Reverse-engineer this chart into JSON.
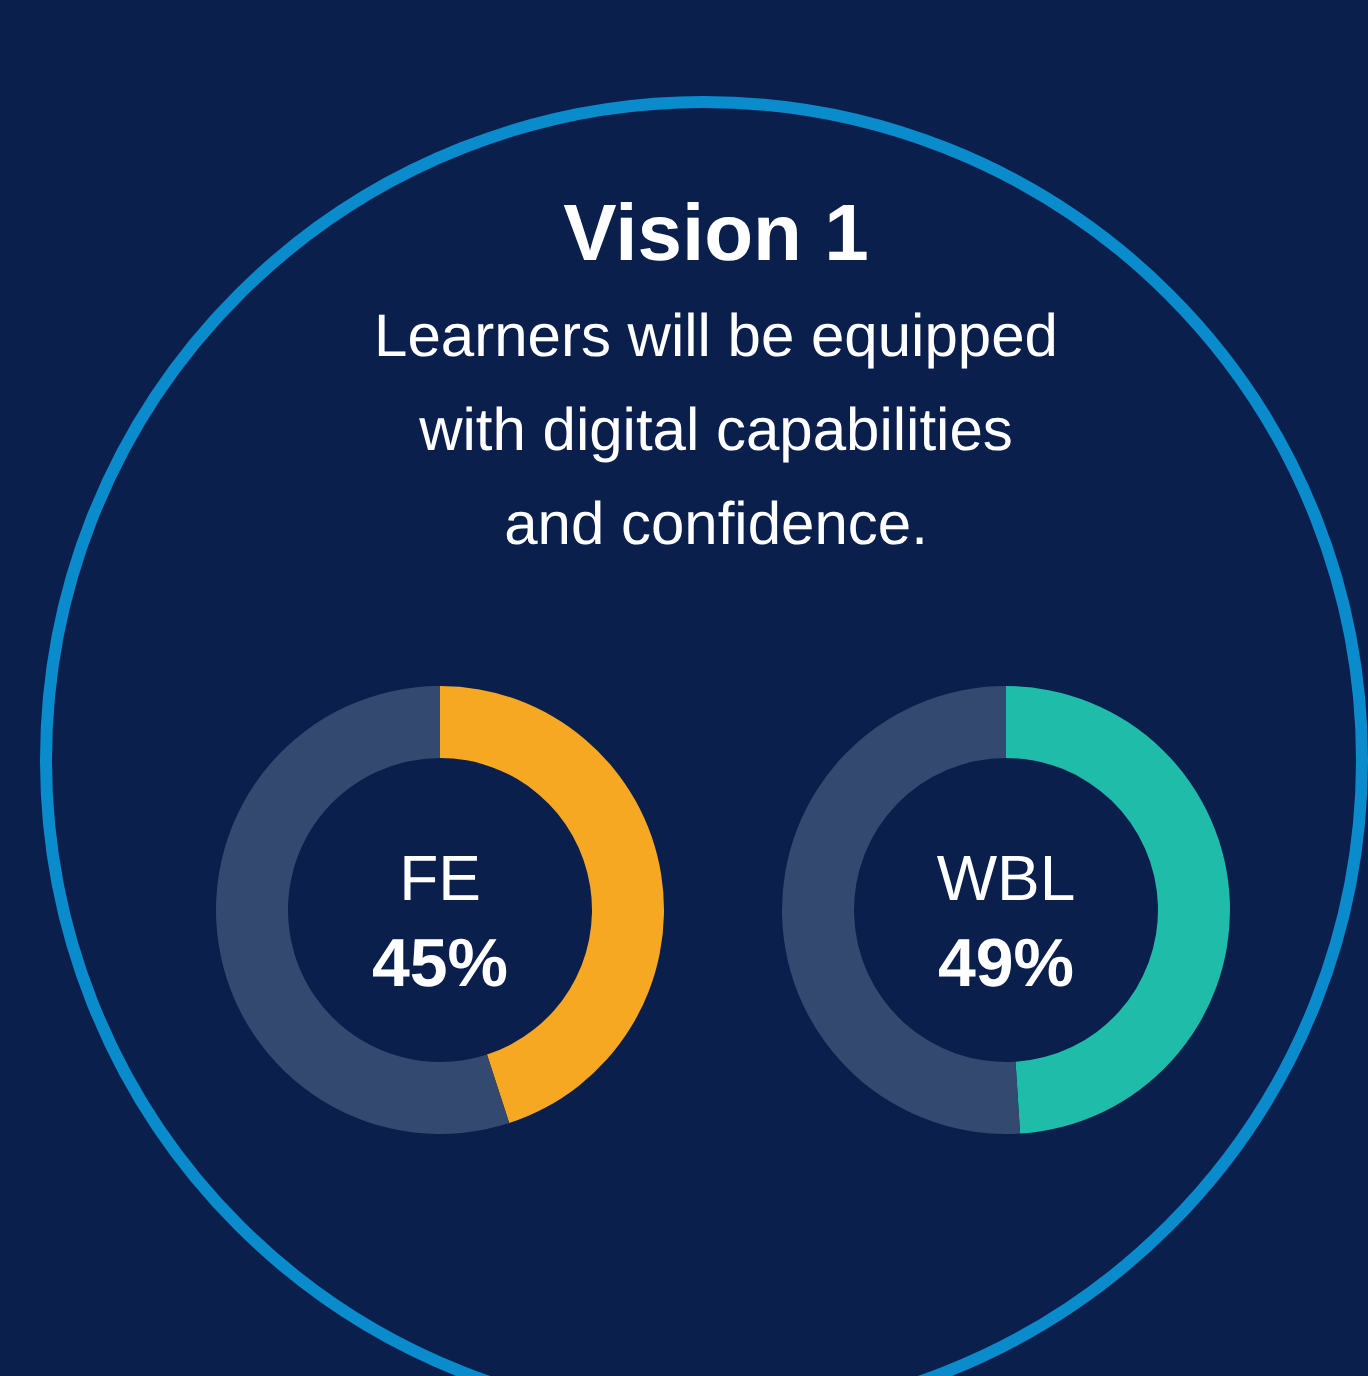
{
  "chart_data": [
    {
      "type": "other",
      "title": "Vision 1",
      "subtitle": "Learners will be equipped with digital capabilities and confidence."
    },
    {
      "type": "donut",
      "categories": [
        "FE",
        null
      ],
      "values": [
        45,
        55
      ],
      "colors": [
        "#f7a823",
        "#34496f"
      ],
      "value_labels": [
        "45%",
        null
      ]
    },
    {
      "type": "donut",
      "categories": [
        "WBL",
        null
      ],
      "values": [
        49,
        51
      ],
      "colors": [
        "#1fbcaa",
        "#34496f"
      ],
      "value_labels": [
        "49%",
        null
      ]
    }
  ]
}
